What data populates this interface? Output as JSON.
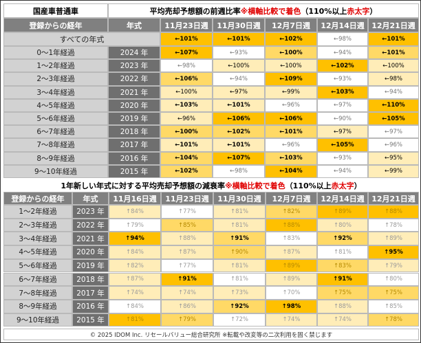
{
  "colors": {
    "c0": "#ffffff",
    "c1": "#ffedb8",
    "c2": "#ffd966",
    "c3": "#ffc000"
  },
  "t1": {
    "corner": "国産車普通車",
    "title_main": "平均売却予想額の前週比率 ",
    "title_note": "※横軸比較で着色",
    "title_paren_open": "（110%以上 ",
    "title_red": "赤太字",
    "title_paren_close": "）",
    "col1": "登録からの経年",
    "col2": "年式",
    "weeks": [
      "11月23日週",
      "11月30日週",
      "12月7日週",
      "12月14日週",
      "12月21日週"
    ],
    "all": {
      "label": "すべての年式",
      "cells": [
        {
          "v": "←101%",
          "c": 3,
          "b": 1
        },
        {
          "v": "←101%",
          "c": 3,
          "b": 1
        },
        {
          "v": "←102%",
          "c": 3,
          "b": 1
        },
        {
          "v": "←98%",
          "c": 0,
          "b": 0
        },
        {
          "v": "←101%",
          "c": 3,
          "b": 1
        }
      ]
    },
    "rows": [
      {
        "label": "0～1年経過",
        "year": "2024 年",
        "cells": [
          {
            "v": "←107%",
            "c": 3,
            "b": 1
          },
          {
            "v": "←93%",
            "c": 0,
            "b": 0
          },
          {
            "v": "←100%",
            "c": 2,
            "b": 1
          },
          {
            "v": "←94%",
            "c": 0,
            "b": 0
          },
          {
            "v": "←101%",
            "c": 2,
            "b": 1
          }
        ]
      },
      {
        "label": "1～2年経過",
        "year": "2023 年",
        "cells": [
          {
            "v": "←98%",
            "c": 0,
            "b": 0
          },
          {
            "v": "←100%",
            "c": 1,
            "b": 0
          },
          {
            "v": "←100%",
            "c": 1,
            "b": 0
          },
          {
            "v": "←102%",
            "c": 3,
            "b": 1
          },
          {
            "v": "←100%",
            "c": 1,
            "b": 0
          }
        ]
      },
      {
        "label": "2～3年経過",
        "year": "2022 年",
        "cells": [
          {
            "v": "←106%",
            "c": 2,
            "b": 1
          },
          {
            "v": "←94%",
            "c": 0,
            "b": 0
          },
          {
            "v": "←109%",
            "c": 3,
            "b": 1
          },
          {
            "v": "←93%",
            "c": 0,
            "b": 0
          },
          {
            "v": "←98%",
            "c": 1,
            "b": 0
          }
        ]
      },
      {
        "label": "3～4年経過",
        "year": "2021 年",
        "cells": [
          {
            "v": "←100%",
            "c": 1,
            "b": 0
          },
          {
            "v": "←97%",
            "c": 1,
            "b": 0
          },
          {
            "v": "←99%",
            "c": 1,
            "b": 0
          },
          {
            "v": "←103%",
            "c": 3,
            "b": 1
          },
          {
            "v": "←94%",
            "c": 0,
            "b": 0
          }
        ]
      },
      {
        "label": "4～5年経過",
        "year": "2020 年",
        "cells": [
          {
            "v": "←103%",
            "c": 1,
            "b": 1
          },
          {
            "v": "←101%",
            "c": 1,
            "b": 1
          },
          {
            "v": "←96%",
            "c": 0,
            "b": 0
          },
          {
            "v": "←97%",
            "c": 0,
            "b": 0
          },
          {
            "v": "←110%",
            "c": 3,
            "b": 1
          }
        ]
      },
      {
        "label": "5～6年経過",
        "year": "2019 年",
        "cells": [
          {
            "v": "←96%",
            "c": 1,
            "b": 0
          },
          {
            "v": "←106%",
            "c": 3,
            "b": 1
          },
          {
            "v": "←106%",
            "c": 3,
            "b": 1
          },
          {
            "v": "←90%",
            "c": 0,
            "b": 0
          },
          {
            "v": "←105%",
            "c": 3,
            "b": 1
          }
        ]
      },
      {
        "label": "6～7年経過",
        "year": "2018 年",
        "cells": [
          {
            "v": "←100%",
            "c": 2,
            "b": 1
          },
          {
            "v": "←102%",
            "c": 2,
            "b": 1
          },
          {
            "v": "←101%",
            "c": 2,
            "b": 1
          },
          {
            "v": "←97%",
            "c": 1,
            "b": 0
          },
          {
            "v": "←97%",
            "c": 0,
            "b": 0
          }
        ]
      },
      {
        "label": "7～8年経過",
        "year": "2017 年",
        "cells": [
          {
            "v": "←101%",
            "c": 1,
            "b": 1
          },
          {
            "v": "←101%",
            "c": 1,
            "b": 1
          },
          {
            "v": "←96%",
            "c": 0,
            "b": 0
          },
          {
            "v": "←105%",
            "c": 3,
            "b": 1
          },
          {
            "v": "←96%",
            "c": 0,
            "b": 0
          }
        ]
      },
      {
        "label": "8～9年経過",
        "year": "2016 年",
        "cells": [
          {
            "v": "←104%",
            "c": 2,
            "b": 1
          },
          {
            "v": "←107%",
            "c": 3,
            "b": 1
          },
          {
            "v": "←103%",
            "c": 2,
            "b": 1
          },
          {
            "v": "←93%",
            "c": 0,
            "b": 0
          },
          {
            "v": "←95%",
            "c": 1,
            "b": 0
          }
        ]
      },
      {
        "label": "9～10年経過",
        "year": "2015 年",
        "cells": [
          {
            "v": "←102%",
            "c": 2,
            "b": 1
          },
          {
            "v": "←98%",
            "c": 0,
            "b": 0
          },
          {
            "v": "←104%",
            "c": 3,
            "b": 1
          },
          {
            "v": "←94%",
            "c": 0,
            "b": 0
          },
          {
            "v": "←99%",
            "c": 1,
            "b": 0
          }
        ]
      }
    ]
  },
  "t2": {
    "title_main": "1年新しい年式に対する平均売却予想額の減衰率 ",
    "title_note": "※横軸比較で着色",
    "title_paren_open": "（110%以上 ",
    "title_red": "赤太字",
    "title_paren_close": "）",
    "col1": "登録からの経年",
    "col2": "年式",
    "weeks": [
      "11月16日週",
      "11月23日週",
      "11月30日週",
      "12月7日週",
      "12月14日週",
      "12月21日週"
    ],
    "rows": [
      {
        "label": "1～2年経過",
        "year": "2023 年",
        "cells": [
          {
            "v": "↑84%",
            "c": 1,
            "b": 0
          },
          {
            "v": "↑77%",
            "c": 0,
            "b": 0
          },
          {
            "v": "↑81%",
            "c": 1,
            "b": 0
          },
          {
            "v": "↑82%",
            "c": 2,
            "b": 0
          },
          {
            "v": "↑89%",
            "c": 3,
            "b": 0
          },
          {
            "v": "↑88%",
            "c": 3,
            "b": 0
          }
        ]
      },
      {
        "label": "2～3年経過",
        "year": "2022 年",
        "cells": [
          {
            "v": "↑79%",
            "c": 0,
            "b": 0
          },
          {
            "v": "↑85%",
            "c": 2,
            "b": 0
          },
          {
            "v": "↑81%",
            "c": 1,
            "b": 0
          },
          {
            "v": "↑88%",
            "c": 3,
            "b": 0
          },
          {
            "v": "↑80%",
            "c": 1,
            "b": 0
          },
          {
            "v": "↑78%",
            "c": 0,
            "b": 0
          }
        ]
      },
      {
        "label": "3～4年経過",
        "year": "2021 年",
        "cells": [
          {
            "v": "↑94%",
            "c": 3,
            "b": 1
          },
          {
            "v": "↑88%",
            "c": 1,
            "b": 0
          },
          {
            "v": "↑91%",
            "c": 2,
            "b": 1
          },
          {
            "v": "↑83%",
            "c": 0,
            "b": 0
          },
          {
            "v": "↑92%",
            "c": 2,
            "b": 1
          },
          {
            "v": "↑89%",
            "c": 1,
            "b": 0
          }
        ]
      },
      {
        "label": "4～5年経過",
        "year": "2020 年",
        "cells": [
          {
            "v": "↑84%",
            "c": 1,
            "b": 0
          },
          {
            "v": "↑87%",
            "c": 1,
            "b": 0
          },
          {
            "v": "↑90%",
            "c": 2,
            "b": 0
          },
          {
            "v": "↑87%",
            "c": 1,
            "b": 0
          },
          {
            "v": "↑81%",
            "c": 0,
            "b": 0
          },
          {
            "v": "↑95%",
            "c": 3,
            "b": 1
          }
        ]
      },
      {
        "label": "5～6年経過",
        "year": "2019 年",
        "cells": [
          {
            "v": "↑82%",
            "c": 1,
            "b": 0
          },
          {
            "v": "↑77%",
            "c": 0,
            "b": 0
          },
          {
            "v": "↑81%",
            "c": 1,
            "b": 0
          },
          {
            "v": "↑89%",
            "c": 3,
            "b": 0
          },
          {
            "v": "↑83%",
            "c": 2,
            "b": 0
          },
          {
            "v": "↑79%",
            "c": 1,
            "b": 0
          }
        ]
      },
      {
        "label": "6～7年経過",
        "year": "2018 年",
        "cells": [
          {
            "v": "↑87%",
            "c": 1,
            "b": 0
          },
          {
            "v": "↑91%",
            "c": 3,
            "b": 1
          },
          {
            "v": "↑81%",
            "c": 0,
            "b": 0
          },
          {
            "v": "↑89%",
            "c": 1,
            "b": 0
          },
          {
            "v": "↑91%",
            "c": 3,
            "b": 1
          },
          {
            "v": "↑80%",
            "c": 0,
            "b": 0
          }
        ]
      },
      {
        "label": "7～8年経過",
        "year": "2017 年",
        "cells": [
          {
            "v": "↑74%",
            "c": 1,
            "b": 0
          },
          {
            "v": "↑74%",
            "c": 1,
            "b": 0
          },
          {
            "v": "↑73%",
            "c": 1,
            "b": 0
          },
          {
            "v": "↑70%",
            "c": 0,
            "b": 0
          },
          {
            "v": "↑75%",
            "c": 2,
            "b": 0
          },
          {
            "v": "↑75%",
            "c": 2,
            "b": 0
          }
        ]
      },
      {
        "label": "8～9年経過",
        "year": "2016 年",
        "cells": [
          {
            "v": "↑84%",
            "c": 0,
            "b": 0
          },
          {
            "v": "↑86%",
            "c": 1,
            "b": 0
          },
          {
            "v": "↑92%",
            "c": 2,
            "b": 1
          },
          {
            "v": "↑98%",
            "c": 3,
            "b": 1
          },
          {
            "v": "↑88%",
            "c": 1,
            "b": 0
          },
          {
            "v": "↑85%",
            "c": 0,
            "b": 0
          }
        ]
      },
      {
        "label": "9～10年経過",
        "year": "2015 年",
        "cells": [
          {
            "v": "↑81%",
            "c": 3,
            "b": 0
          },
          {
            "v": "↑79%",
            "c": 2,
            "b": 0
          },
          {
            "v": "↑72%",
            "c": 0,
            "b": 0
          },
          {
            "v": "↑74%",
            "c": 1,
            "b": 0
          },
          {
            "v": "↑74%",
            "c": 1,
            "b": 0
          },
          {
            "v": "↑78%",
            "c": 2,
            "b": 0
          }
        ]
      }
    ]
  },
  "footer": "© 2025 IDOM Inc. リセールバリュー総合研究所 ※転載や改変等の二次利用を固く禁じます"
}
